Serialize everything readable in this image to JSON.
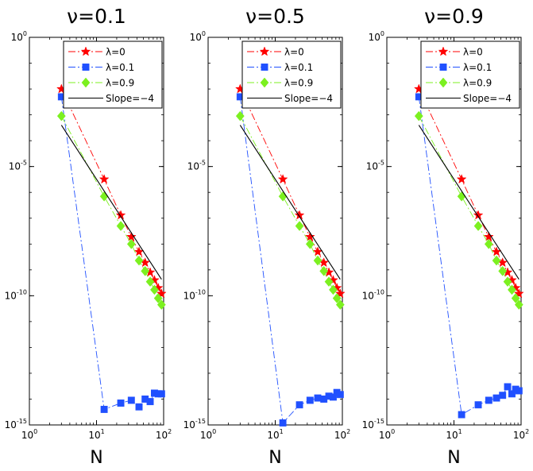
{
  "figure": {
    "panels": [
      {
        "id": "nu01",
        "title": "ν=0.1"
      },
      {
        "id": "nu05",
        "title": "ν=0.5"
      },
      {
        "id": "nu09",
        "title": "ν=0.9"
      }
    ]
  },
  "chart_data": [
    {
      "type": "line",
      "title": "ν=0.1",
      "xlabel": "N",
      "ylabel": "",
      "xscale": "log",
      "yscale": "log",
      "xlim": [
        1,
        100
      ],
      "ylim": [
        1e-15,
        1
      ],
      "xticks": [
        {
          "base": "10",
          "exp": "0"
        },
        {
          "base": "10",
          "exp": "1"
        },
        {
          "base": "10",
          "exp": "2"
        }
      ],
      "yticks": [
        {
          "base": "10",
          "exp": "0",
          "value": 1
        },
        {
          "base": "10",
          "exp": "-5",
          "value": 1e-05
        },
        {
          "base": "10",
          "exp": "-10",
          "value": 1e-10
        },
        {
          "base": "10",
          "exp": "-15",
          "value": 1e-15
        }
      ],
      "legend_position": "top-right",
      "series": [
        {
          "name": "λ=0",
          "color": "#ff0000",
          "marker": "star",
          "line": "dashdot",
          "x": [
            3,
            13,
            23,
            33,
            43,
            53,
            63,
            73,
            83,
            93
          ],
          "y": [
            0.01,
            3.2e-06,
            1.3e-07,
            1.9e-08,
            5e-09,
            1.9e-09,
            8e-10,
            4e-10,
            2e-10,
            1.2e-10
          ]
        },
        {
          "name": "λ=0.1",
          "color": "#2050ff",
          "marker": "square",
          "line": "dashdot",
          "x": [
            3,
            13,
            23,
            33,
            43,
            53,
            63,
            73,
            83,
            93
          ],
          "y": [
            0.005,
            4e-15,
            7e-15,
            9e-15,
            5e-15,
            1e-14,
            8e-15,
            1.7e-14,
            1.6e-14,
            1.6e-14
          ]
        },
        {
          "name": "λ=0.9",
          "color": "#7cf020",
          "marker": "diamond",
          "line": "dashdot",
          "x": [
            3,
            13,
            23,
            33,
            43,
            53,
            63,
            73,
            83,
            93
          ],
          "y": [
            0.0009,
            7e-07,
            5e-08,
            1e-08,
            2.3e-09,
            9e-10,
            3.5e-10,
            1.7e-10,
            8e-11,
            4.5e-11
          ]
        },
        {
          "name": "Slope=−4",
          "color": "#000000",
          "marker": "none",
          "line": "solid",
          "x": [
            3,
            93
          ],
          "y": [
            0.0004,
            4.3e-10
          ]
        }
      ]
    },
    {
      "type": "line",
      "title": "ν=0.5",
      "xlabel": "N",
      "ylabel": "",
      "xscale": "log",
      "yscale": "log",
      "xlim": [
        1,
        100
      ],
      "ylim": [
        1e-15,
        1
      ],
      "xticks": [
        {
          "base": "10",
          "exp": "0"
        },
        {
          "base": "10",
          "exp": "1"
        },
        {
          "base": "10",
          "exp": "2"
        }
      ],
      "yticks": [
        {
          "base": "10",
          "exp": "0",
          "value": 1
        },
        {
          "base": "10",
          "exp": "-5",
          "value": 1e-05
        },
        {
          "base": "10",
          "exp": "-10",
          "value": 1e-10
        },
        {
          "base": "10",
          "exp": "-15",
          "value": 1e-15
        }
      ],
      "legend_position": "top-right",
      "series": [
        {
          "name": "λ=0",
          "color": "#ff0000",
          "marker": "star",
          "line": "dashdot",
          "x": [
            3,
            13,
            23,
            33,
            43,
            53,
            63,
            73,
            83,
            93
          ],
          "y": [
            0.01,
            3.2e-06,
            1.3e-07,
            1.9e-08,
            5e-09,
            1.9e-09,
            8e-10,
            4e-10,
            2e-10,
            1.2e-10
          ]
        },
        {
          "name": "λ=0.1",
          "color": "#2050ff",
          "marker": "square",
          "line": "dashdot",
          "x": [
            3,
            13,
            23,
            33,
            43,
            53,
            63,
            73,
            83,
            93
          ],
          "y": [
            0.005,
            1.2e-15,
            6e-15,
            9e-15,
            1.1e-14,
            1e-14,
            1.3e-14,
            1.2e-14,
            1.8e-14,
            1.5e-14
          ]
        },
        {
          "name": "λ=0.9",
          "color": "#7cf020",
          "marker": "diamond",
          "line": "dashdot",
          "x": [
            3,
            13,
            23,
            33,
            43,
            53,
            63,
            73,
            83,
            93
          ],
          "y": [
            0.0009,
            7e-07,
            5e-08,
            1e-08,
            2.3e-09,
            9e-10,
            3.5e-10,
            1.7e-10,
            8e-11,
            4.5e-11
          ]
        },
        {
          "name": "Slope=−4",
          "color": "#000000",
          "marker": "none",
          "line": "solid",
          "x": [
            3,
            93
          ],
          "y": [
            0.0004,
            4.3e-10
          ]
        }
      ]
    },
    {
      "type": "line",
      "title": "ν=0.9",
      "xlabel": "N",
      "ylabel": "",
      "xscale": "log",
      "yscale": "log",
      "xlim": [
        1,
        100
      ],
      "ylim": [
        1e-15,
        1
      ],
      "xticks": [
        {
          "base": "10",
          "exp": "0"
        },
        {
          "base": "10",
          "exp": "1"
        },
        {
          "base": "10",
          "exp": "2"
        }
      ],
      "yticks": [
        {
          "base": "10",
          "exp": "0",
          "value": 1
        },
        {
          "base": "10",
          "exp": "-5",
          "value": 1e-05
        },
        {
          "base": "10",
          "exp": "-10",
          "value": 1e-10
        },
        {
          "base": "10",
          "exp": "-15",
          "value": 1e-15
        }
      ],
      "legend_position": "top-right",
      "series": [
        {
          "name": "λ=0",
          "color": "#ff0000",
          "marker": "star",
          "line": "dashdot",
          "x": [
            3,
            13,
            23,
            33,
            43,
            53,
            63,
            73,
            83,
            93
          ],
          "y": [
            0.01,
            3.2e-06,
            1.3e-07,
            1.9e-08,
            5e-09,
            1.9e-09,
            8e-10,
            4e-10,
            2e-10,
            1.2e-10
          ]
        },
        {
          "name": "λ=0.1",
          "color": "#2050ff",
          "marker": "square",
          "line": "dashdot",
          "x": [
            3,
            13,
            23,
            33,
            43,
            53,
            63,
            73,
            83,
            93
          ],
          "y": [
            0.005,
            2.5e-15,
            6e-15,
            9e-15,
            1.1e-14,
            1.4e-14,
            3e-14,
            1.6e-14,
            2.4e-14,
            2.1e-14
          ]
        },
        {
          "name": "λ=0.9",
          "color": "#7cf020",
          "marker": "diamond",
          "line": "dashdot",
          "x": [
            3,
            13,
            23,
            33,
            43,
            53,
            63,
            73,
            83,
            93
          ],
          "y": [
            0.0009,
            7e-07,
            5e-08,
            1e-08,
            2.3e-09,
            9e-10,
            3.5e-10,
            1.7e-10,
            8e-11,
            4.5e-11
          ]
        },
        {
          "name": "Slope=−4",
          "color": "#000000",
          "marker": "none",
          "line": "solid",
          "x": [
            3,
            93
          ],
          "y": [
            0.0004,
            4.3e-10
          ]
        }
      ]
    }
  ]
}
